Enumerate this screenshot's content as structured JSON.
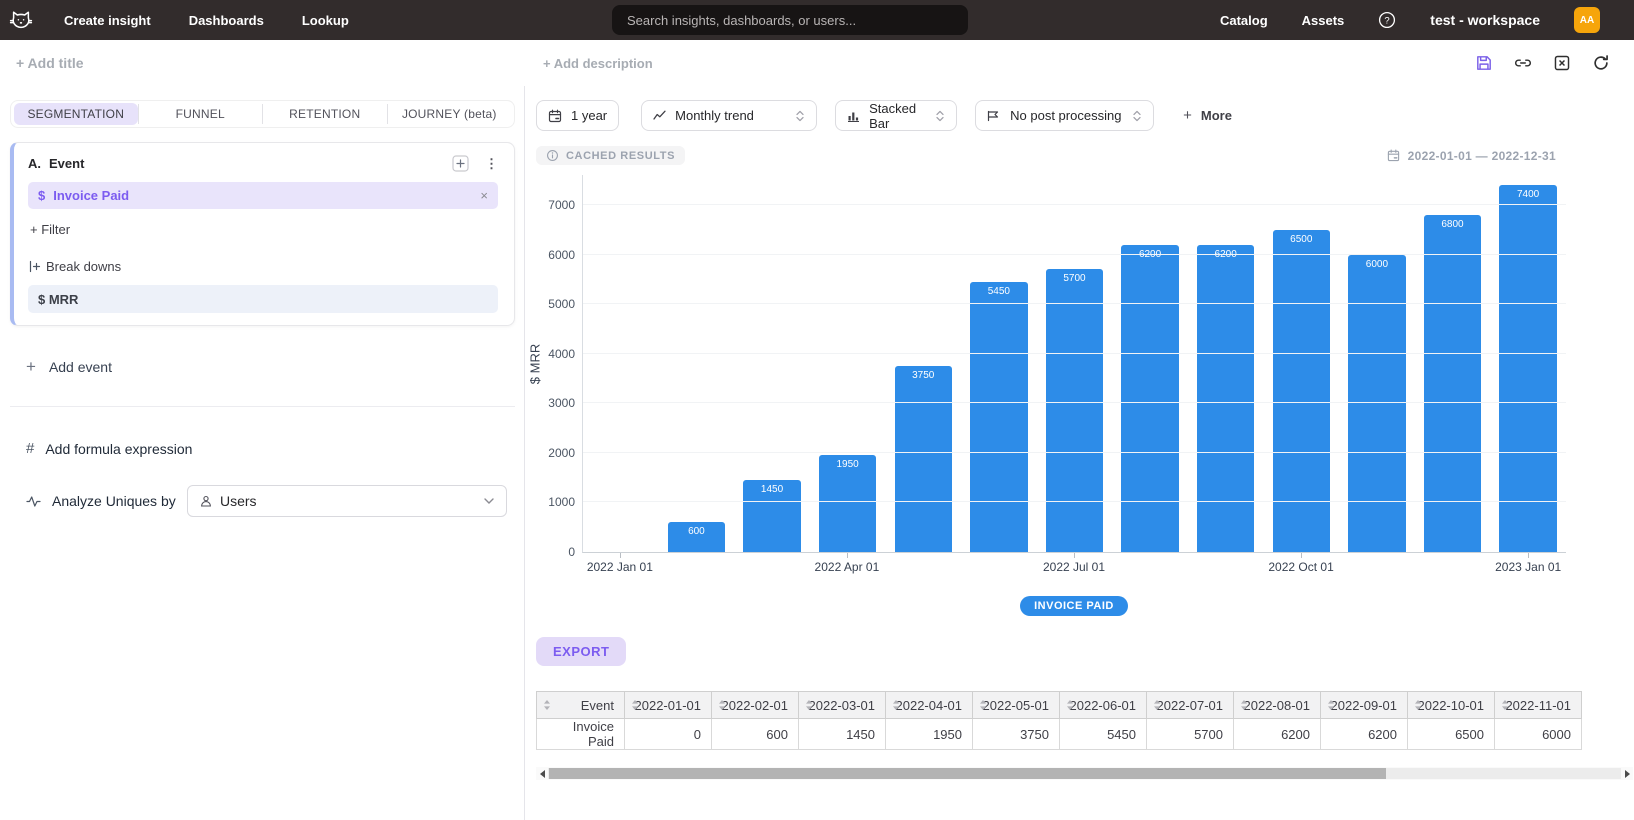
{
  "nav": {
    "items": [
      "Create insight",
      "Dashboards",
      "Lookup"
    ],
    "search_placeholder": "Search insights, dashboards, or users...",
    "right_items": [
      "Catalog",
      "Assets"
    ],
    "workspace_name": "test - workspace",
    "avatar_initials": "AA"
  },
  "toolbar": {
    "add_title": "+ Add title",
    "add_description": "+ Add description"
  },
  "left_panel": {
    "tabs": [
      "SEGMENTATION",
      "FUNNEL",
      "RETENTION",
      "JOURNEY (beta)"
    ],
    "active_tab": "SEGMENTATION",
    "event_card": {
      "prefix": "A.",
      "title": "Event",
      "event_symbol": "$",
      "event_name": "Invoice Paid",
      "filter_label": "+ Filter",
      "breakdowns_label": "Break downs",
      "breakdown_value": "$ MRR"
    },
    "add_event_label": "Add event",
    "add_formula_label": "Add formula expression",
    "analyze_label": "Analyze Uniques by",
    "analyze_value": "Users"
  },
  "controls": {
    "date_button": "1 year",
    "trend_select": "Monthly trend",
    "chart_type_select": "Stacked Bar",
    "post_processing_select": "No post processing",
    "more_label": "More",
    "more_plus": "+"
  },
  "results": {
    "cached_badge": "CACHED RESULTS",
    "date_range": "2022-01-01 — 2022-12-31",
    "legend_label": "INVOICE PAID",
    "export_label": "EXPORT"
  },
  "chart_data": {
    "type": "bar",
    "series_name": "Invoice Paid",
    "x": [
      "2022-01-01",
      "2022-02-01",
      "2022-03-01",
      "2022-04-01",
      "2022-05-01",
      "2022-06-01",
      "2022-07-01",
      "2022-08-01",
      "2022-09-01",
      "2022-10-01",
      "2022-11-01",
      "2022-12-01",
      "2023-01-01"
    ],
    "values": [
      0,
      600,
      1450,
      1950,
      3750,
      5450,
      5700,
      6200,
      6200,
      6500,
      6000,
      6800,
      7400
    ],
    "title": "",
    "xlabel": "",
    "ylabel": "$ MRR",
    "ylim": [
      0,
      7620
    ],
    "y_ticks": [
      0,
      1000,
      2000,
      3000,
      4000,
      5000,
      6000,
      7000
    ],
    "x_tick_labels": [
      "2022 Jan 01",
      "2022 Apr 01",
      "2022 Jul 01",
      "2022 Oct 01",
      "2023 Jan 01"
    ],
    "x_tick_indices": [
      0,
      3,
      6,
      9,
      12
    ],
    "bar_color": "#2d8ce8",
    "grid": true,
    "legend_position": "bottom"
  },
  "table": {
    "columns": [
      "Event",
      "2022-01-01",
      "2022-02-01",
      "2022-03-01",
      "2022-04-01",
      "2022-05-01",
      "2022-06-01",
      "2022-07-01",
      "2022-08-01",
      "2022-09-01",
      "2022-10-01",
      "2022-11-01"
    ],
    "rows": [
      {
        "event": "Invoice Paid",
        "values": [
          0,
          600,
          1450,
          1950,
          3750,
          5450,
          5700,
          6200,
          6200,
          6500,
          6000
        ]
      }
    ]
  },
  "colors": {
    "accent_purple": "#7c5cf0",
    "bar_blue": "#2d8ce8",
    "avatar_amber": "#f6a50b",
    "nav_bg": "#322c2c"
  }
}
